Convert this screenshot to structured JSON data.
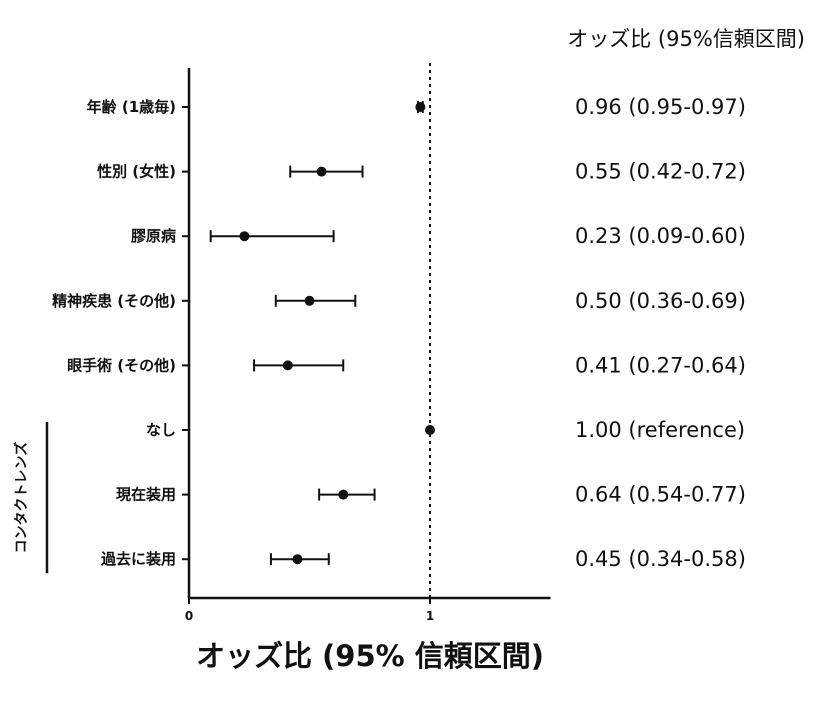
{
  "chart_data": {
    "type": "forest",
    "header": "オッズ比 (95%信頼区間)",
    "xlabel": "オッズ比 (95% 信頼区間)",
    "xlim": [
      0,
      1.5
    ],
    "x_ticks": [
      {
        "value": 0,
        "label": "0"
      },
      {
        "value": 1,
        "label": "1"
      }
    ],
    "reference_line": 1,
    "reference_line_style": "dotted",
    "group": {
      "label": "コンタクトレンズ",
      "rows": [
        5,
        6,
        7
      ]
    },
    "rows": [
      {
        "label": "年齢 (1歳毎)",
        "or": 0.96,
        "lo": 0.95,
        "hi": 0.97,
        "text": "0.96 (0.95-0.97)"
      },
      {
        "label": "性別 (女性)",
        "or": 0.55,
        "lo": 0.42,
        "hi": 0.72,
        "text": "0.55 (0.42-0.72)"
      },
      {
        "label": "膠原病",
        "or": 0.23,
        "lo": 0.09,
        "hi": 0.6,
        "text": "0.23 (0.09-0.60)"
      },
      {
        "label": "精神疾患 (その他)",
        "or": 0.5,
        "lo": 0.36,
        "hi": 0.69,
        "text": "0.50 (0.36-0.69)"
      },
      {
        "label": "眼手術 (その他)",
        "or": 0.41,
        "lo": 0.27,
        "hi": 0.64,
        "text": "0.41 (0.27-0.64)"
      },
      {
        "label": "なし",
        "or": 1.0,
        "lo": 1.0,
        "hi": 1.0,
        "text": "1.00 (reference)"
      },
      {
        "label": "現在装用",
        "or": 0.64,
        "lo": 0.54,
        "hi": 0.77,
        "text": "0.64 (0.54-0.77)"
      },
      {
        "label": "過去に装用",
        "or": 0.45,
        "lo": 0.34,
        "hi": 0.58,
        "text": "0.45 (0.34-0.58)"
      }
    ]
  }
}
